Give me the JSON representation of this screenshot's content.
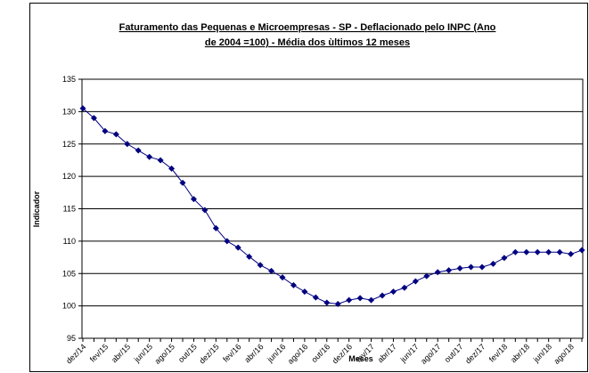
{
  "chart_data": {
    "type": "line",
    "title": [
      "Faturamento das Pequenas e Microempresas - SP - Deflacionado pelo INPC (Ano",
      "de 2004 =100) - Média dos ùltimos 12 meses"
    ],
    "x_label": "Meses",
    "y_label": "Indicador",
    "categories": [
      "dez/14",
      null,
      "fev/15",
      null,
      "abr/15",
      null,
      "jun/15",
      null,
      "ago/15",
      null,
      "out/15",
      null,
      "dez/15",
      null,
      "fev/16",
      null,
      "abr/16",
      null,
      "jun/16",
      null,
      "ago/16",
      null,
      "out/16",
      null,
      "dez/16",
      null,
      "fev/17",
      null,
      "abr/17",
      null,
      "jun/17",
      null,
      "ago/17",
      null,
      "out/17",
      null,
      "dez/17",
      null,
      "fev/18",
      null,
      "abr/18",
      null,
      "jun/18",
      null,
      "ago/18",
      null
    ],
    "series": [
      {
        "name": "Indicador",
        "color": "#000080",
        "values": [
          130.5,
          129,
          127,
          126.5,
          125,
          124,
          123,
          122.5,
          121.2,
          119,
          116.5,
          114.8,
          112,
          110,
          109,
          107.6,
          106.3,
          105.4,
          104.4,
          103.2,
          102.2,
          101.3,
          100.5,
          100.3,
          100.9,
          101.2,
          100.9,
          101.6,
          102.2,
          102.8,
          103.8,
          104.6,
          105.2,
          105.5,
          105.8,
          106,
          106,
          106.5,
          107.4,
          108.3,
          108.3,
          108.3,
          108.3,
          108.3,
          108,
          108.6
        ]
      }
    ],
    "ylim": [
      95,
      135
    ],
    "yticks": [
      95,
      100,
      105,
      110,
      115,
      120,
      125,
      130,
      135
    ],
    "grid": true
  }
}
